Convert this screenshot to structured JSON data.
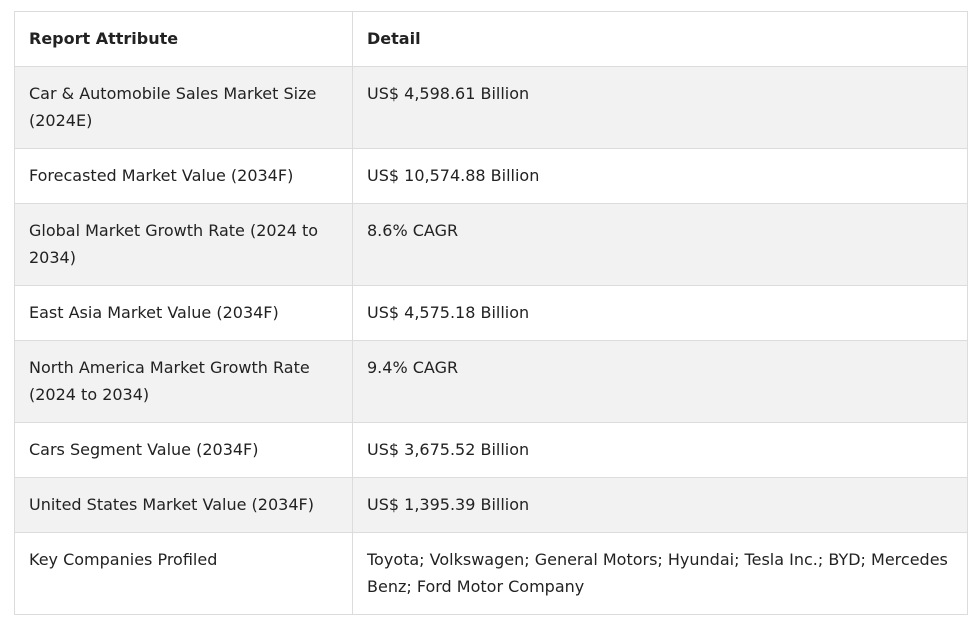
{
  "table": {
    "header": [
      "Report Attribute",
      "Detail"
    ],
    "rows": [
      [
        "Car & Automobile Sales Market Size (2024E)",
        "US$ 4,598.61 Billion"
      ],
      [
        "Forecasted Market Value (2034F)",
        "US$ 10,574.88 Billion"
      ],
      [
        "Global Market Growth Rate (2024 to 2034)",
        "8.6% CAGR"
      ],
      [
        "East Asia Market Value (2034F)",
        "US$ 4,575.18 Billion"
      ],
      [
        "North America Market Growth Rate (2024 to 2034)",
        "9.4% CAGR"
      ],
      [
        "Cars Segment Value (2034F)",
        "US$ 3,675.52 Billion"
      ],
      [
        "United States Market Value (2034F)",
        "US$ 1,395.39 Billion"
      ],
      [
        "Key Companies Profiled",
        "Toyota; Volkswagen; General Motors; Hyundai; Tesla Inc.; BYD; Mercedes Benz; Ford Motor Company"
      ]
    ]
  }
}
